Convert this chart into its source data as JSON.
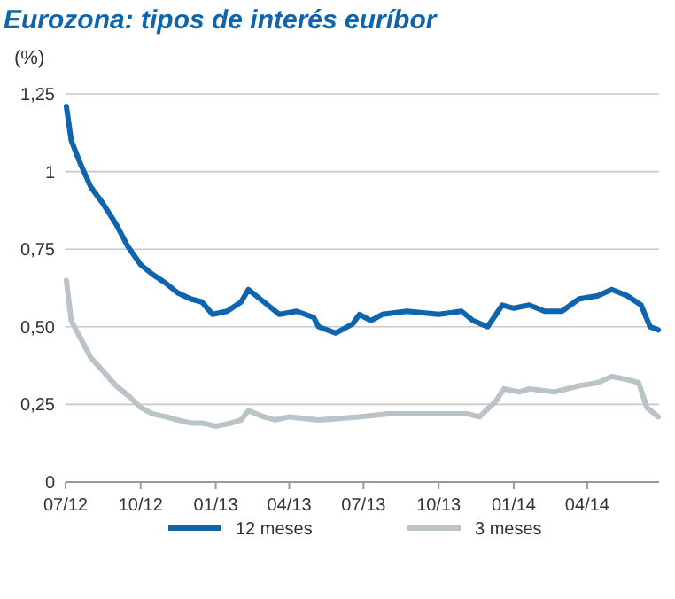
{
  "chart_data": {
    "type": "line",
    "title": "Eurozona: tipos de interés euríbor",
    "ylabel": "(%)",
    "xlim": [
      "2012-07-01",
      "2014-06-28"
    ],
    "xticks": [
      {
        "value": "2012-07-01",
        "label": "07/12"
      },
      {
        "value": "2012-10-01",
        "label": "10/12"
      },
      {
        "value": "2013-01-01",
        "label": "01/13"
      },
      {
        "value": "2013-04-01",
        "label": "04/13"
      },
      {
        "value": "2013-07-01",
        "label": "07/13"
      },
      {
        "value": "2013-10-01",
        "label": "10/13"
      },
      {
        "value": "2014-01-01",
        "label": "01/14"
      },
      {
        "value": "2014-04-01",
        "label": "04/14"
      }
    ],
    "ylim": [
      0,
      1.25
    ],
    "yticks": [
      0,
      {
        "value": 0.25,
        "label": "0,25"
      },
      {
        "value": 0.5,
        "label": "0,50"
      },
      {
        "value": 0.75,
        "label": "0,75"
      },
      1,
      {
        "value": 1.25,
        "label": "1,25"
      }
    ],
    "grid": "y",
    "legend": "bottom",
    "line_style": "solid",
    "marker": "none",
    "series": [
      {
        "name": "12 meses",
        "color": "#0e64ad",
        "x": [
          "2012-07-02",
          "2012-07-08",
          "2012-07-20",
          "2012-08-01",
          "2012-08-15",
          "2012-09-01",
          "2012-09-15",
          "2012-10-01",
          "2012-10-15",
          "2012-11-01",
          "2012-11-15",
          "2012-12-01",
          "2012-12-15",
          "2012-12-28",
          "2013-01-15",
          "2013-02-01",
          "2013-02-10",
          "2013-03-01",
          "2013-03-20",
          "2013-04-10",
          "2013-05-01",
          "2013-05-07",
          "2013-05-28",
          "2013-06-18",
          "2013-06-26",
          "2013-07-10",
          "2013-07-24",
          "2013-08-23",
          "2013-10-01",
          "2013-10-29",
          "2013-11-12",
          "2013-11-30",
          "2013-12-18",
          "2014-01-01",
          "2014-01-20",
          "2014-02-08",
          "2014-03-01",
          "2014-03-22",
          "2014-04-14",
          "2014-05-01",
          "2014-05-20",
          "2014-06-06",
          "2014-06-17",
          "2014-06-27"
        ],
        "values": [
          1.21,
          1.1,
          1.02,
          0.95,
          0.9,
          0.83,
          0.76,
          0.7,
          0.67,
          0.64,
          0.61,
          0.59,
          0.58,
          0.54,
          0.55,
          0.58,
          0.62,
          0.58,
          0.54,
          0.55,
          0.53,
          0.5,
          0.48,
          0.51,
          0.54,
          0.52,
          0.54,
          0.55,
          0.54,
          0.55,
          0.52,
          0.5,
          0.57,
          0.56,
          0.57,
          0.55,
          0.55,
          0.59,
          0.6,
          0.62,
          0.6,
          0.57,
          0.5,
          0.49
        ]
      },
      {
        "name": "3 meses",
        "color": "#b9c3c8",
        "x": [
          "2012-07-02",
          "2012-07-08",
          "2012-07-20",
          "2012-08-01",
          "2012-08-15",
          "2012-09-01",
          "2012-09-15",
          "2012-10-01",
          "2012-10-15",
          "2012-11-01",
          "2012-11-15",
          "2012-12-01",
          "2012-12-15",
          "2013-01-01",
          "2013-01-20",
          "2013-02-01",
          "2013-02-10",
          "2013-03-01",
          "2013-03-15",
          "2013-04-01",
          "2013-05-07",
          "2013-06-26",
          "2013-07-31",
          "2013-10-01",
          "2013-11-05",
          "2013-11-20",
          "2013-12-10",
          "2013-12-20",
          "2014-01-08",
          "2014-01-20",
          "2014-02-20",
          "2014-03-22",
          "2014-04-14",
          "2014-05-01",
          "2014-05-20",
          "2014-06-03",
          "2014-06-13",
          "2014-06-27"
        ],
        "values": [
          0.65,
          0.52,
          0.46,
          0.4,
          0.36,
          0.31,
          0.28,
          0.24,
          0.22,
          0.21,
          0.2,
          0.19,
          0.19,
          0.18,
          0.19,
          0.2,
          0.23,
          0.21,
          0.2,
          0.21,
          0.2,
          0.21,
          0.22,
          0.22,
          0.22,
          0.21,
          0.26,
          0.3,
          0.29,
          0.3,
          0.29,
          0.31,
          0.32,
          0.34,
          0.33,
          0.32,
          0.24,
          0.21
        ]
      }
    ]
  }
}
